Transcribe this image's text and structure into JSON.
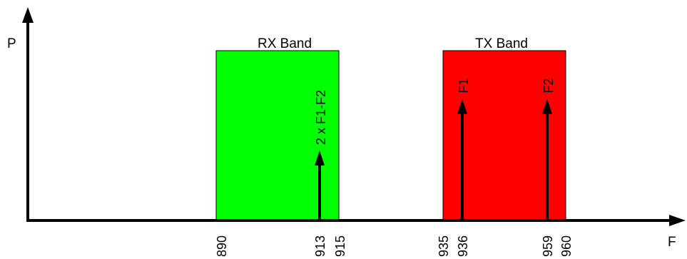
{
  "axes": {
    "y_label": "P",
    "x_label": "F"
  },
  "bands": [
    {
      "id": "rx",
      "label": "RX Band",
      "from": 890,
      "to": 915,
      "color": "#00ff00"
    },
    {
      "id": "tx",
      "label": "TX Band",
      "from": 935,
      "to": 960,
      "color": "#ff0000"
    }
  ],
  "signals": [
    {
      "id": "imd",
      "label": "2 x F1-F2",
      "freq": 913,
      "level": 0.46
    },
    {
      "id": "f1",
      "label": "F1",
      "freq": 936,
      "level": 0.8
    },
    {
      "id": "f2",
      "label": "F2",
      "freq": 959,
      "level": 0.8
    }
  ],
  "ticks": [
    "890",
    "913",
    "915",
    "935",
    "936",
    "959",
    "960"
  ],
  "colors": {
    "axis": "#000000",
    "arrow": "#000000"
  }
}
